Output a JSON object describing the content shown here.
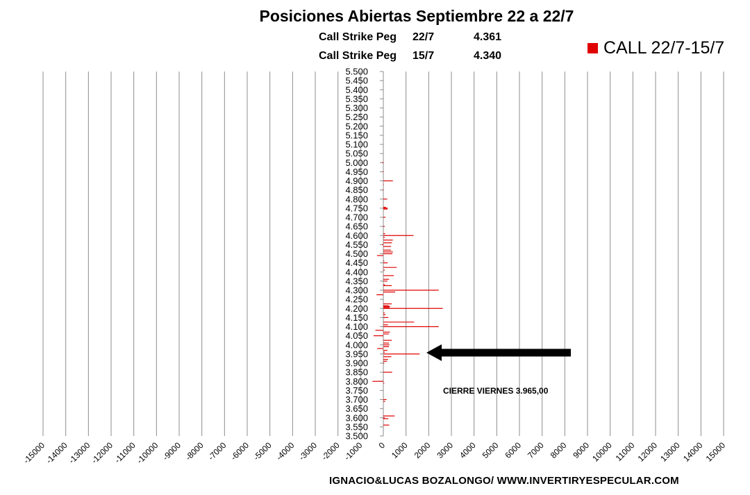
{
  "chart_data": {
    "type": "bar",
    "orientation": "horizontal",
    "title": "Posiciones Abiertas Septiembre 22 a 22/7",
    "subtitle_rows": [
      {
        "label": "Call Strike Peg",
        "date": "22/7",
        "value": "4.361"
      },
      {
        "label": "Call Strike Peg",
        "date": "15/7",
        "value": "4.340"
      }
    ],
    "legend": [
      {
        "name": "CALL 22/7-15/7",
        "color": "#e00000",
        "position": "top-right"
      }
    ],
    "xlim": [
      -15000,
      15000
    ],
    "xstep": 1000,
    "ylim": [
      3.5,
      5.5
    ],
    "ystep": 0.05,
    "grid": "vertical",
    "series": [
      {
        "name": "CALL 22/7-15/7",
        "points": [
          [
            5.0,
            -50
          ],
          [
            4.95,
            -30
          ],
          [
            4.9,
            420
          ],
          [
            4.88,
            20
          ],
          [
            4.85,
            -30
          ],
          [
            4.8,
            170
          ],
          [
            4.755,
            120
          ],
          [
            4.75,
            200
          ],
          [
            4.745,
            180
          ],
          [
            4.7,
            100
          ],
          [
            4.65,
            60
          ],
          [
            4.61,
            80
          ],
          [
            4.6,
            1330
          ],
          [
            4.59,
            60
          ],
          [
            4.575,
            420
          ],
          [
            4.56,
            380
          ],
          [
            4.55,
            -60
          ],
          [
            4.54,
            340
          ],
          [
            4.52,
            340
          ],
          [
            4.51,
            420
          ],
          [
            4.5,
            400
          ],
          [
            4.49,
            -280
          ],
          [
            4.46,
            40
          ],
          [
            4.45,
            190
          ],
          [
            4.425,
            590
          ],
          [
            4.41,
            60
          ],
          [
            4.38,
            460
          ],
          [
            4.36,
            250
          ],
          [
            4.35,
            180
          ],
          [
            4.33,
            70
          ],
          [
            4.325,
            370
          ],
          [
            4.3,
            2440
          ],
          [
            4.29,
            520
          ],
          [
            4.275,
            -300
          ],
          [
            4.225,
            370
          ],
          [
            4.215,
            240
          ],
          [
            4.21,
            300
          ],
          [
            4.205,
            270
          ],
          [
            4.2,
            2620
          ],
          [
            4.175,
            60
          ],
          [
            4.165,
            100
          ],
          [
            4.15,
            220
          ],
          [
            4.125,
            1360
          ],
          [
            4.11,
            200
          ],
          [
            4.1,
            2440
          ],
          [
            4.08,
            -350
          ],
          [
            4.07,
            290
          ],
          [
            4.06,
            240
          ],
          [
            4.05,
            -430
          ],
          [
            4.025,
            370
          ],
          [
            4.01,
            245
          ],
          [
            4.0,
            270
          ],
          [
            3.99,
            245
          ],
          [
            3.98,
            -270
          ],
          [
            3.97,
            180
          ],
          [
            3.96,
            60
          ],
          [
            3.95,
            1600
          ],
          [
            3.935,
            350
          ],
          [
            3.92,
            210
          ],
          [
            3.91,
            160
          ],
          [
            3.9,
            40
          ],
          [
            3.85,
            390
          ],
          [
            3.8,
            -480
          ],
          [
            3.79,
            40
          ],
          [
            3.7,
            140
          ],
          [
            3.69,
            80
          ],
          [
            3.61,
            500
          ],
          [
            3.6,
            60
          ],
          [
            3.595,
            220
          ],
          [
            3.56,
            260
          ]
        ]
      }
    ],
    "annotation": {
      "text": "CIERRE VIERNES 3.965,00",
      "points_to": 3.965
    }
  },
  "footer": "IGNACIO&LUCAS BOZALONGO/ WWW.INVERTIRYESPECULAR.COM"
}
